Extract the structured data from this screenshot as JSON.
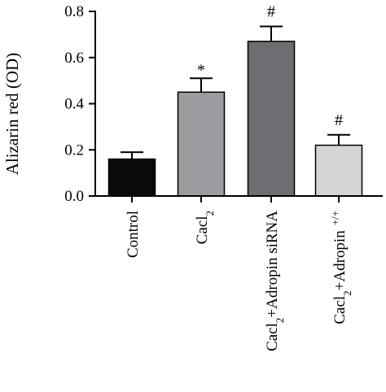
{
  "chart_data": {
    "type": "bar",
    "title": "",
    "xlabel": "",
    "ylabel": "Alizarin red (OD)",
    "ylim": [
      0,
      0.8
    ],
    "yticks": [
      "0.0",
      "0.2",
      "0.4",
      "0.6",
      "0.8"
    ],
    "ytick_values": [
      0,
      0.2,
      0.4,
      0.6,
      0.8
    ],
    "categories": [
      "Control",
      "Cacl2",
      "Cacl2+Adropin siRNA",
      "Cacl2+Adropin +/+"
    ],
    "category_labels": [
      {
        "main": "Control",
        "sub": "",
        "rest": "",
        "sup": ""
      },
      {
        "main": "Cacl",
        "sub": "2",
        "rest": "",
        "sup": ""
      },
      {
        "main": "Cacl",
        "sub": "2",
        "rest": "+Adropin siRNA",
        "sup": ""
      },
      {
        "main": "Cacl",
        "sub": "2",
        "rest": "+Adropin",
        "sup": "+/+"
      }
    ],
    "values": [
      0.16,
      0.45,
      0.67,
      0.22
    ],
    "errors": [
      0.03,
      0.06,
      0.065,
      0.045
    ],
    "annotations": [
      "",
      "*",
      "#",
      "#"
    ],
    "colors": [
      "#0a0a0a",
      "#9b9ba0",
      "#6d6d72",
      "#d5d5d8"
    ],
    "grid": false
  }
}
